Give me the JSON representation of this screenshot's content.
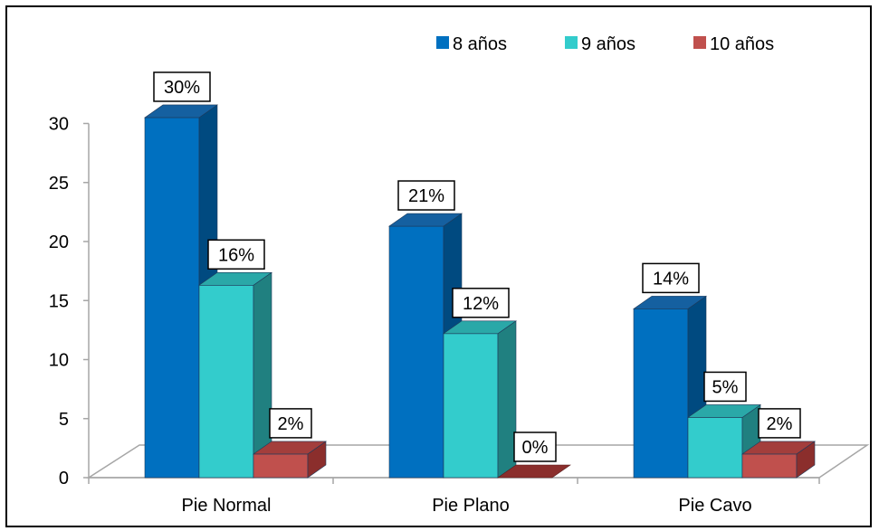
{
  "chart_data": {
    "type": "bar",
    "categories": [
      "Pie Normal",
      "Pie Plano",
      "Pie Cavo"
    ],
    "series": [
      {
        "name": "8 años",
        "values": [
          30.5,
          21.3,
          14.3
        ],
        "labels": [
          "30%",
          "21%",
          "14%"
        ],
        "color": "#0070C0",
        "side": "#004A80",
        "top": "#1560A0"
      },
      {
        "name": "9 años",
        "values": [
          16.3,
          12.2,
          5.1
        ],
        "labels": [
          "16%",
          "12%",
          "5%"
        ],
        "color": "#33CCCC",
        "side": "#208080",
        "top": "#2AA8A8"
      },
      {
        "name": "10 años",
        "values": [
          2.0,
          0.0,
          2.0
        ],
        "labels": [
          "2%",
          "0%",
          "2%"
        ],
        "color": "#C0504D",
        "side": "#8B2E2C",
        "top": "#A33E3C"
      }
    ],
    "yticks": [
      "0",
      "5",
      "10",
      "15",
      "20",
      "25",
      "30"
    ],
    "ylim": [
      0,
      30
    ],
    "grid": false,
    "legend_position": "top-right",
    "view": "3d"
  }
}
